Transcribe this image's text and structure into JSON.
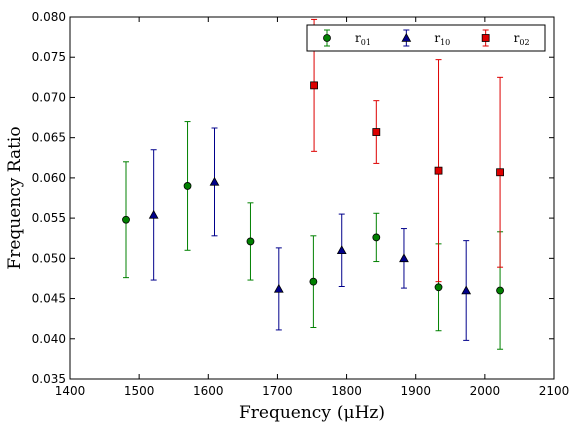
{
  "chart_data": {
    "type": "scatter",
    "title": "",
    "xlabel": "Frequency",
    "xlabel_unit": "(μHz)",
    "ylabel": "Frequency Ratio",
    "xlim": [
      1400,
      2100
    ],
    "ylim": [
      0.035,
      0.08
    ],
    "xticks": [
      1400,
      1500,
      1600,
      1700,
      1800,
      1900,
      2000,
      2100
    ],
    "yticks": [
      0.035,
      0.04,
      0.045,
      0.05,
      0.055,
      0.06,
      0.065,
      0.07,
      0.075,
      0.08
    ],
    "grid": false,
    "legend_position": "top-right",
    "series": [
      {
        "name_base": "r",
        "name_sub": "01",
        "color": "#008000",
        "marker": "circle",
        "points": [
          {
            "x": 1481,
            "y": 0.0548,
            "err": 0.0072
          },
          {
            "x": 1570,
            "y": 0.059,
            "err": 0.008
          },
          {
            "x": 1661,
            "y": 0.0521,
            "err": 0.0048
          },
          {
            "x": 1752,
            "y": 0.0471,
            "err": 0.0057
          },
          {
            "x": 1843,
            "y": 0.0526,
            "err": 0.003
          },
          {
            "x": 1933,
            "y": 0.0464,
            "err": 0.0054
          },
          {
            "x": 2022,
            "y": 0.046,
            "err": 0.0073
          }
        ]
      },
      {
        "name_base": "r",
        "name_sub": "10",
        "color": "#00008b",
        "marker": "triangle",
        "points": [
          {
            "x": 1521,
            "y": 0.0554,
            "err": 0.0081
          },
          {
            "x": 1609,
            "y": 0.0595,
            "err": 0.0067
          },
          {
            "x": 1702,
            "y": 0.0462,
            "err": 0.0051
          },
          {
            "x": 1793,
            "y": 0.051,
            "err": 0.0045
          },
          {
            "x": 1883,
            "y": 0.05,
            "err": 0.0037
          },
          {
            "x": 1973,
            "y": 0.046,
            "err": 0.0062
          }
        ]
      },
      {
        "name_base": "r",
        "name_sub": "02",
        "color": "#dd0000",
        "marker": "square",
        "points": [
          {
            "x": 1753,
            "y": 0.0715,
            "err": 0.0082
          },
          {
            "x": 1843,
            "y": 0.0657,
            "err": 0.0039
          },
          {
            "x": 1933,
            "y": 0.0609,
            "err": 0.0138
          },
          {
            "x": 2022,
            "y": 0.0607,
            "err": 0.0118
          }
        ]
      }
    ]
  }
}
